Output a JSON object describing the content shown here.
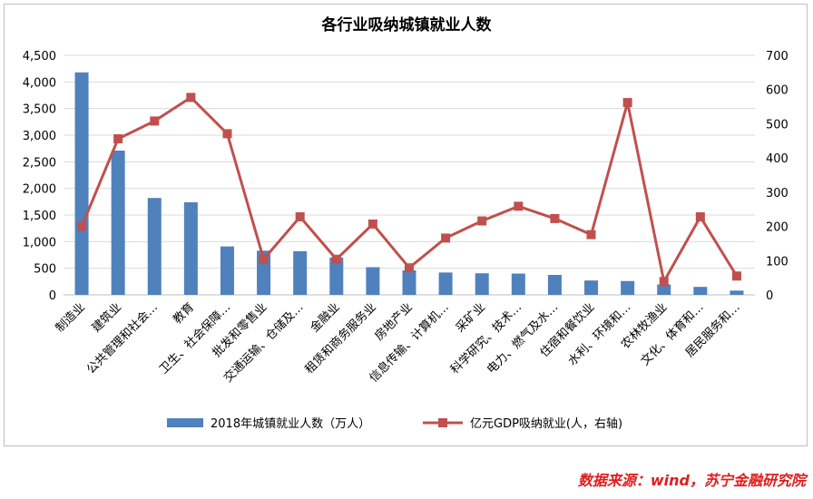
{
  "chart_data": {
    "type": "bar+line",
    "title": "各行业吸纳城镇就业人数",
    "categories": [
      "制造业",
      "建筑业",
      "公共管理和社会…",
      "教育",
      "卫生、社会保障…",
      "批发和零售业",
      "交通运输、仓储及…",
      "金融业",
      "租赁和商务服务业",
      "房地产业",
      "信息传输、计算机…",
      "采矿业",
      "科学研究、技术…",
      "电力、燃气及水…",
      "住宿和餐饮业",
      "水利、环境和…",
      "农林牧渔业",
      "文化、体育和…",
      "居民服务和…"
    ],
    "series": [
      {
        "name": "2018年城镇就业人数（万人）",
        "type": "bar",
        "axis": "left",
        "color": "#4f81bd",
        "values": [
          4180,
          2710,
          1820,
          1740,
          910,
          830,
          820,
          700,
          520,
          460,
          420,
          405,
          400,
          375,
          270,
          260,
          195,
          150,
          80
        ]
      },
      {
        "name": "亿元GDP吸纳就业(人，右轴)",
        "type": "line",
        "axis": "right",
        "color": "#c0504d",
        "values": [
          200,
          456,
          508,
          577,
          471,
          104,
          228,
          104,
          207,
          79,
          166,
          216,
          259,
          223,
          176,
          562,
          39,
          228,
          55
        ]
      }
    ],
    "y_left": {
      "min": 0,
      "max": 4500,
      "ticks": [
        "0",
        "500",
        "1,000",
        "1,500",
        "2,000",
        "2,500",
        "3,000",
        "3,500",
        "4,000",
        "4,500"
      ]
    },
    "y_right": {
      "min": 0,
      "max": 700,
      "ticks": [
        "0",
        "100",
        "200",
        "300",
        "400",
        "500",
        "600",
        "700"
      ]
    },
    "grid": true,
    "legend": "bottom"
  },
  "source_note": "数据来源：wind，苏宁金融研究院"
}
